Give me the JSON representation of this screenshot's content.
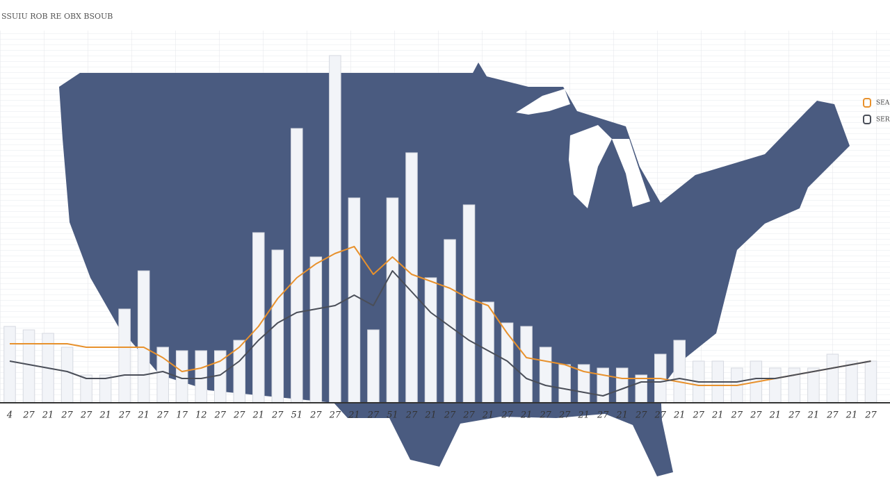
{
  "chart_data": {
    "type": "bar",
    "title": "SSUIU ROB RE OBX BSOUB",
    "categories": [
      "4",
      "27",
      "21",
      "27",
      "27",
      "21",
      "27",
      "21",
      "27",
      "17",
      "12",
      "27",
      "27",
      "21",
      "27",
      "51",
      "27",
      "27",
      "21",
      "27",
      "51",
      "27",
      "21",
      "27",
      "27",
      "21",
      "27",
      "21",
      "27",
      "27",
      "21",
      "27",
      "21",
      "27",
      "27",
      "21",
      "27",
      "21",
      "27",
      "27",
      "21",
      "27",
      "21",
      "27",
      "21",
      "27"
    ],
    "values": [
      22,
      21,
      20,
      16,
      8,
      8,
      27,
      38,
      16,
      15,
      15,
      15,
      18,
      49,
      44,
      79,
      42,
      100,
      59,
      21,
      59,
      72,
      36,
      47,
      57,
      29,
      23,
      22,
      16,
      11,
      11,
      10,
      10,
      8,
      14,
      18,
      12,
      12,
      10,
      12,
      10,
      10,
      10,
      14,
      12,
      12
    ],
    "color": "#f2f4f8",
    "ylim": [
      0,
      100
    ],
    "series": [
      {
        "name": "SEAS",
        "color": "#e8912c",
        "values": [
          17,
          17,
          17,
          17,
          16,
          16,
          16,
          16,
          13,
          9,
          10,
          12,
          16,
          22,
          30,
          36,
          40,
          43,
          45,
          37,
          42,
          37,
          35,
          33,
          30,
          28,
          20,
          13,
          12,
          11,
          9,
          8,
          7,
          7,
          7,
          6,
          5,
          5,
          5,
          6,
          7,
          8,
          9,
          10,
          11,
          12
        ]
      },
      {
        "name": "SERS",
        "color": "#4a4e58",
        "values": [
          12,
          11,
          10,
          9,
          7,
          7,
          8,
          8,
          9,
          7,
          7,
          8,
          12,
          18,
          23,
          26,
          27,
          28,
          31,
          28,
          38,
          32,
          26,
          22,
          18,
          15,
          12,
          7,
          5,
          4,
          3,
          2,
          4,
          6,
          6,
          7,
          6,
          6,
          6,
          7,
          7,
          8,
          9,
          10,
          11,
          12
        ]
      }
    ],
    "legend": "top-right"
  }
}
